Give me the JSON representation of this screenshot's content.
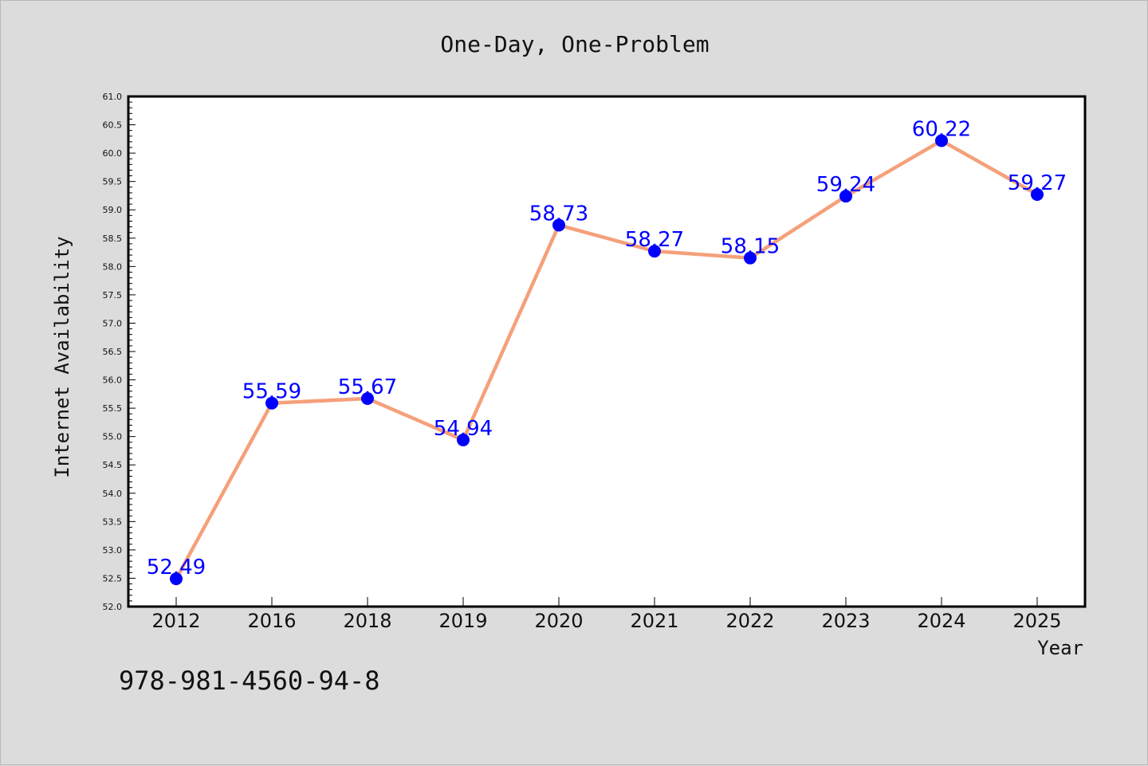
{
  "colors": {
    "background": "#dcdcdc",
    "plot_background": "#ffffff",
    "line": "#f5a07a",
    "marker": "#0000ff",
    "data_label": "#0000ff",
    "axis": "#000000"
  },
  "footer": {
    "isbn": "978-981-4560-94-8"
  },
  "chart_data": {
    "type": "line",
    "title": "One-Day, One-Problem",
    "xlabel": "Year",
    "ylabel": "Internet Availability",
    "categories": [
      "2012",
      "2016",
      "2018",
      "2019",
      "2020",
      "2021",
      "2022",
      "2023",
      "2024",
      "2025"
    ],
    "series": [
      {
        "values": [
          52.49,
          55.59,
          55.67,
          54.94,
          58.73,
          58.27,
          58.15,
          59.24,
          60.22,
          59.27
        ],
        "labels": [
          "52.49",
          "55.59",
          "55.67",
          "54.94",
          "58.73",
          "58.27",
          "58.15",
          "59.24",
          "60.22",
          "59.27"
        ]
      }
    ],
    "ylim": [
      52.0,
      61.0
    ],
    "yticks": [
      "52.0",
      "52.5",
      "53.0",
      "53.5",
      "54.0",
      "54.5",
      "55.0",
      "55.5",
      "56.0",
      "56.5",
      "57.0",
      "57.5",
      "58.0",
      "58.5",
      "59.0",
      "59.5",
      "60.0",
      "60.5",
      "61.0"
    ],
    "grid": false,
    "legend": "none"
  }
}
